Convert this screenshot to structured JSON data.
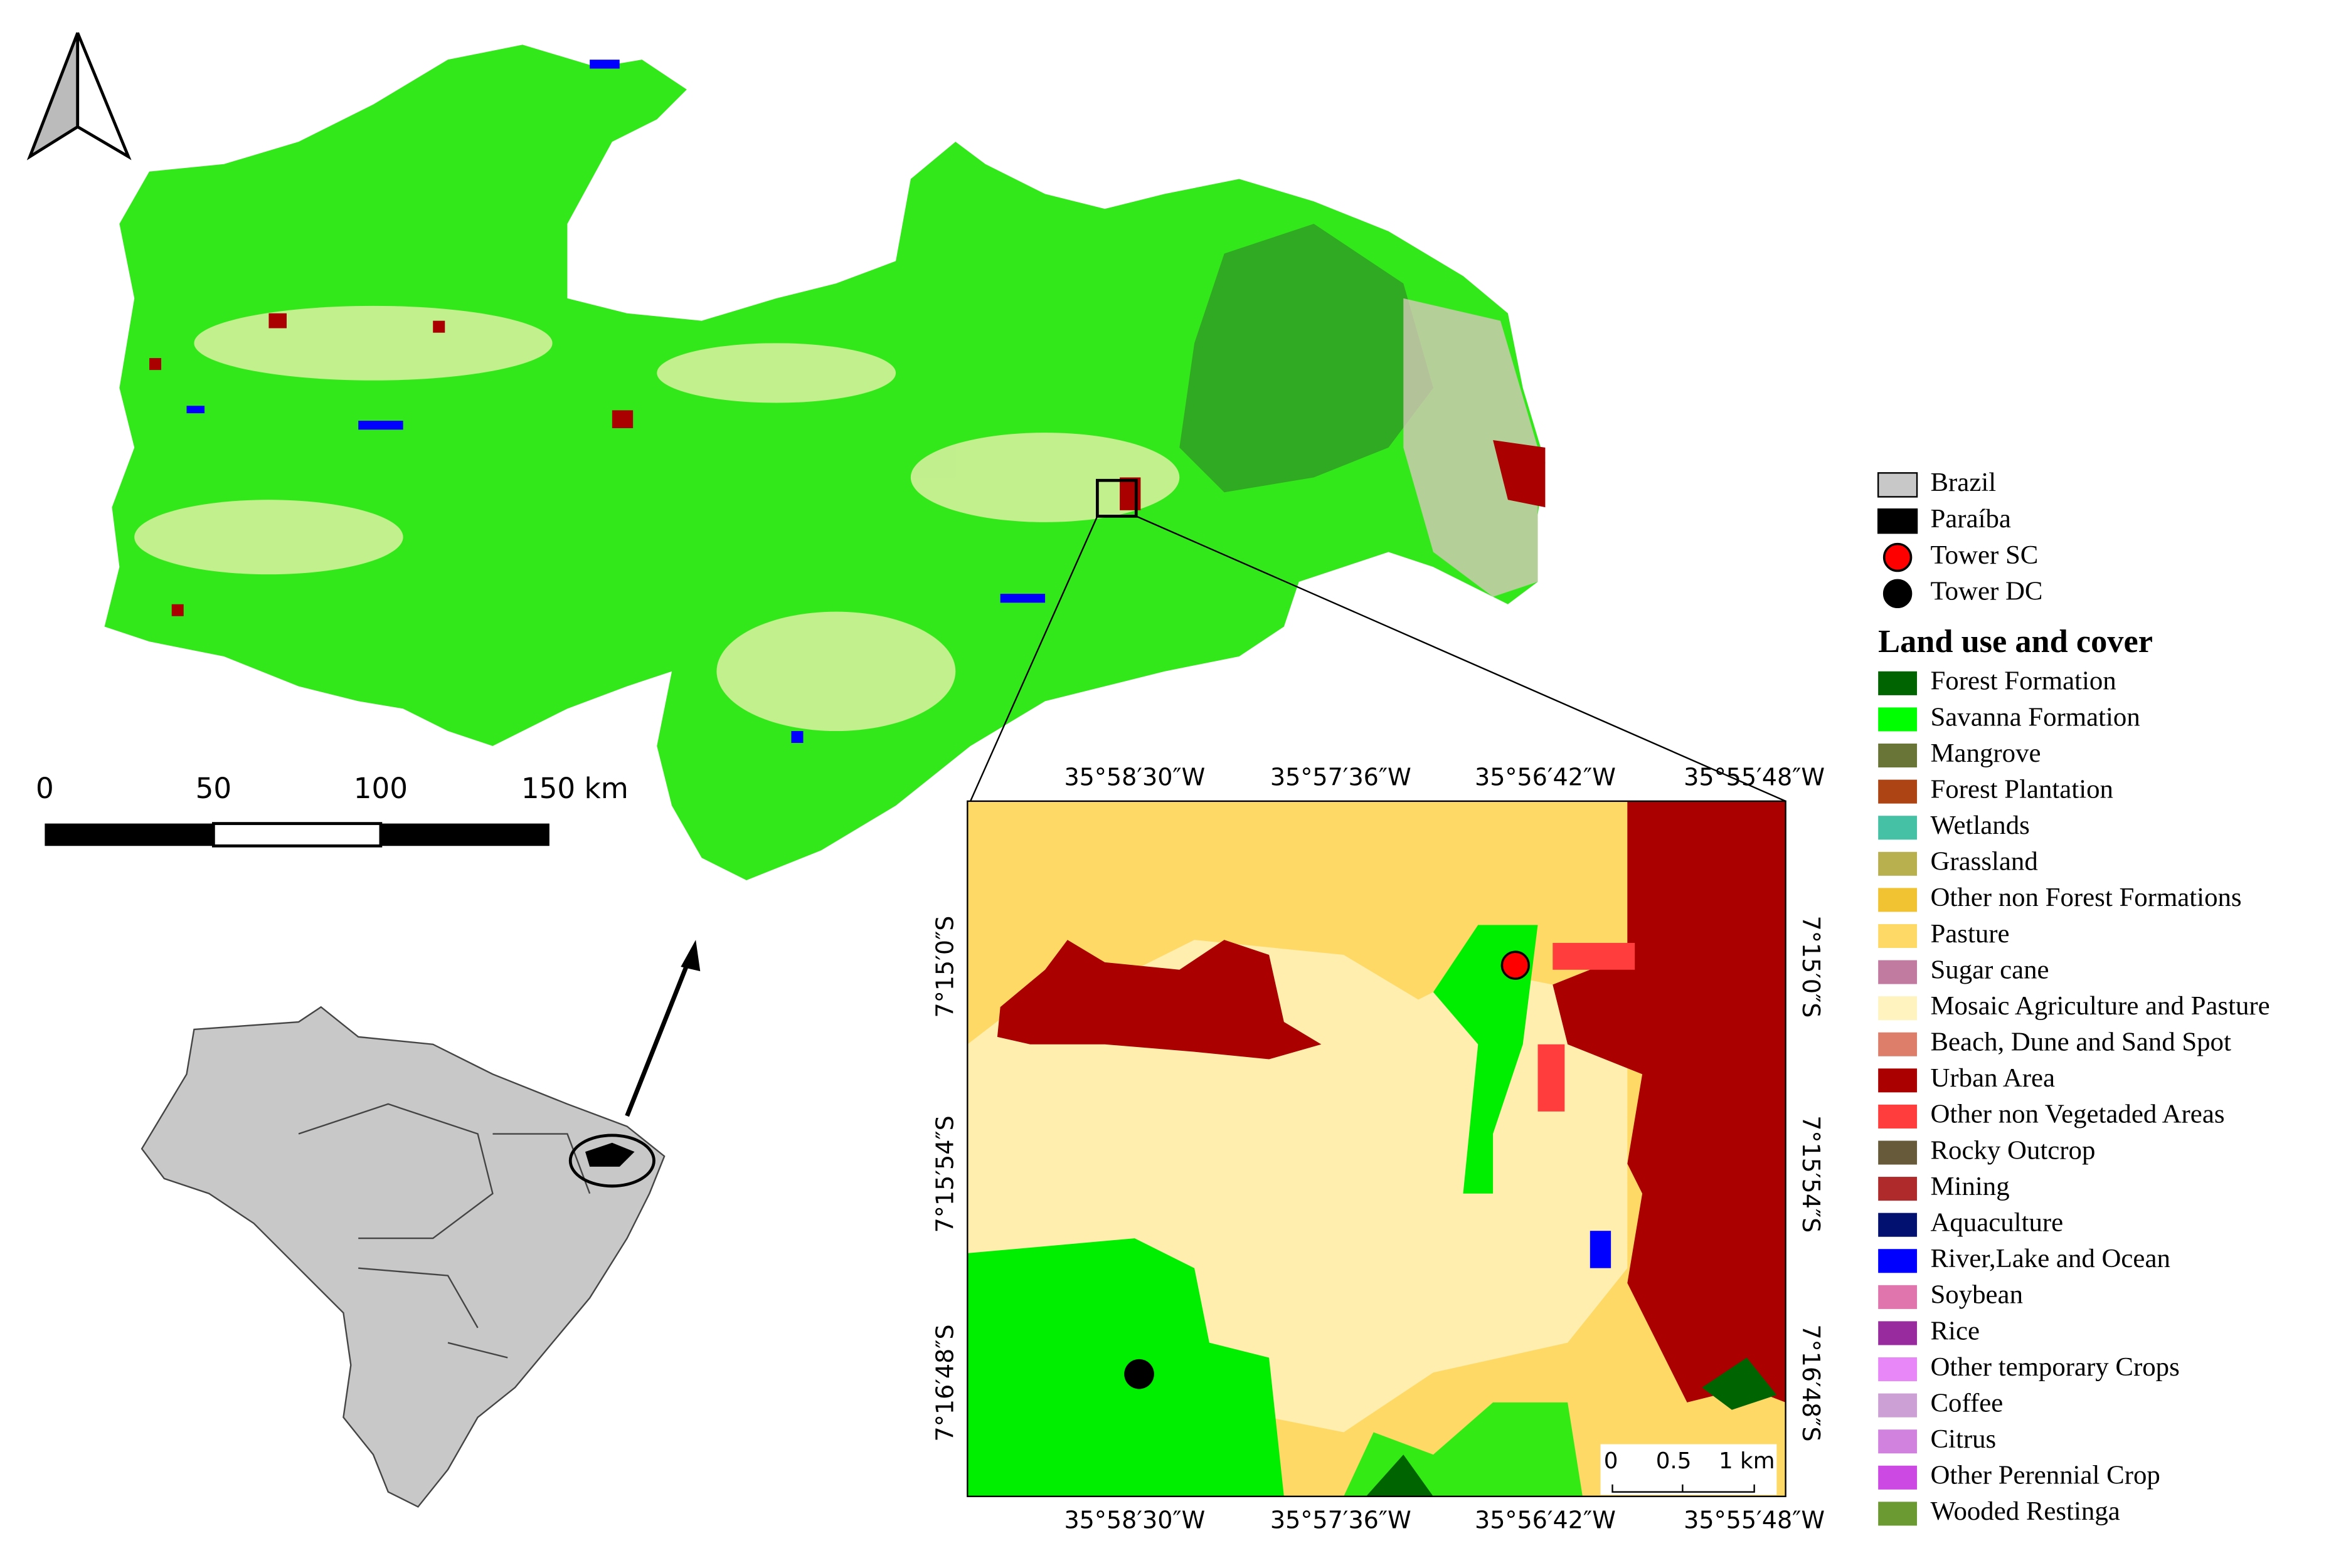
{
  "legend": {
    "location_items": [
      {
        "label": "Brazil",
        "color": "#c8c8c8",
        "shape": "square"
      },
      {
        "label": "Paraíba",
        "color": "#000000",
        "shape": "square"
      },
      {
        "label": "Tower SC",
        "color": "#ff0000",
        "shape": "circle"
      },
      {
        "label": "Tower DC",
        "color": "#000000",
        "shape": "circle"
      }
    ],
    "title": "Land use and cover",
    "classes": [
      {
        "label": "Forest Formation",
        "color": "#006400"
      },
      {
        "label": "Savanna Formation",
        "color": "#00ff00"
      },
      {
        "label": "Mangrove",
        "color": "#687537"
      },
      {
        "label": "Forest Plantation",
        "color": "#ad4413"
      },
      {
        "label": "Wetlands",
        "color": "#45c2a5"
      },
      {
        "label": "Grassland",
        "color": "#b8af4f"
      },
      {
        "label": "Other non Forest Formations",
        "color": "#f1c232"
      },
      {
        "label": "Pasture",
        "color": "#ffd966"
      },
      {
        "label": "Sugar cane",
        "color": "#c27ba0"
      },
      {
        "label": "Mosaic Agriculture and Pasture",
        "color": "#fff3bf"
      },
      {
        "label": "Beach, Dune and Sand Spot",
        "color": "#dd7e6b"
      },
      {
        "label": "Urban Area",
        "color": "#aa0000"
      },
      {
        "label": "Other non Vegetaded Areas",
        "color": "#ff3d3d"
      },
      {
        "label": "Rocky Outcrop",
        "color": "#665a3a"
      },
      {
        "label": "Mining",
        "color": "#af2a2a"
      },
      {
        "label": "Aquaculture",
        "color": "#02106f"
      },
      {
        "label": "River,Lake and Ocean",
        "color": "#0000ff"
      },
      {
        "label": "Soybean",
        "color": "#e075ad"
      },
      {
        "label": "Rice",
        "color": "#982c9e"
      },
      {
        "label": "Other temporary Crops",
        "color": "#e787f8"
      },
      {
        "label": "Coffee",
        "color": "#cca0d4"
      },
      {
        "label": "Citrus",
        "color": "#d082de"
      },
      {
        "label": "Other Perennial Crop",
        "color": "#cd49e4"
      },
      {
        "label": "Wooded Restinga",
        "color": "#6b9932"
      }
    ]
  },
  "scale_bar": {
    "labels": [
      "0",
      "50",
      "100",
      "150 km"
    ]
  },
  "inset": {
    "top_labels": [
      "35°58′30″W",
      "35°57′36″W",
      "35°56′42″W",
      "35°55′48″W"
    ],
    "bottom_labels": [
      "35°58′30″W",
      "35°57′36″W",
      "35°56′42″W",
      "35°55′48″W"
    ],
    "left_labels": [
      "7°15′0″S",
      "7°15′54″S",
      "7°16′48″S"
    ],
    "right_labels": [
      "7°15′0″S",
      "7°15′54″S",
      "7°16′48″S"
    ],
    "scale_labels": [
      "0",
      "0.5",
      "1 km"
    ]
  }
}
